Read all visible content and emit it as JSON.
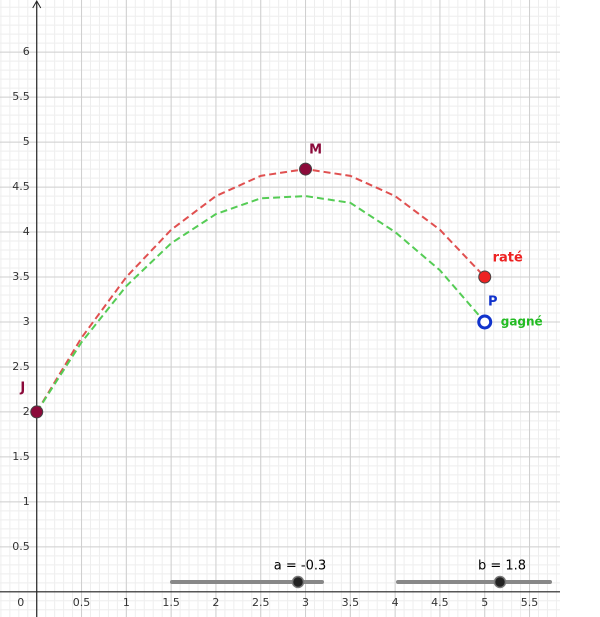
{
  "chart_data": {
    "type": "line",
    "x": [
      0,
      0.5,
      1,
      1.5,
      2,
      2.5,
      3,
      3.5,
      4,
      4.5,
      5
    ],
    "series": [
      {
        "color": "#e05050",
        "values": [
          2,
          2.825,
          3.5,
          4.025,
          4.4,
          4.625,
          4.7,
          4.625,
          4.4,
          4.025,
          3.5
        ]
      },
      {
        "color": "#55cc55",
        "values": [
          2,
          2.775,
          3.4,
          3.875,
          4.2,
          4.375,
          4.4,
          4.325,
          4.0,
          3.575,
          3
        ]
      }
    ],
    "points": [
      {
        "label": "J",
        "x": 0,
        "y": 2,
        "color": "#8b0a3a"
      },
      {
        "label": "M",
        "x": 3,
        "y": 4.7,
        "color": "#8b0a3a"
      },
      {
        "label": "raté",
        "x": 5,
        "y": 3.5,
        "color": "#ee2222"
      },
      {
        "label": "P",
        "x": 5,
        "y": 3,
        "color": "#1133cc",
        "hollow": true
      }
    ],
    "annotation": {
      "text": "gagné",
      "color": "#22bb22"
    },
    "sliders": [
      {
        "label": "a = -0.3"
      },
      {
        "label": "b = 1.8"
      }
    ],
    "xlim": [
      -0.41,
      5.84
    ],
    "ylim": [
      -0.28,
      6.58
    ],
    "xticks": [
      {
        "value": 0,
        "label": "0"
      },
      0.5,
      1,
      1.5,
      2,
      2.5,
      3,
      3.5,
      4,
      4.5,
      5,
      5.5
    ],
    "yticks": [
      0.5,
      1,
      1.5,
      2,
      2.5,
      3,
      3.5,
      4,
      4.5,
      5,
      5.5,
      6
    ],
    "grid": true
  }
}
